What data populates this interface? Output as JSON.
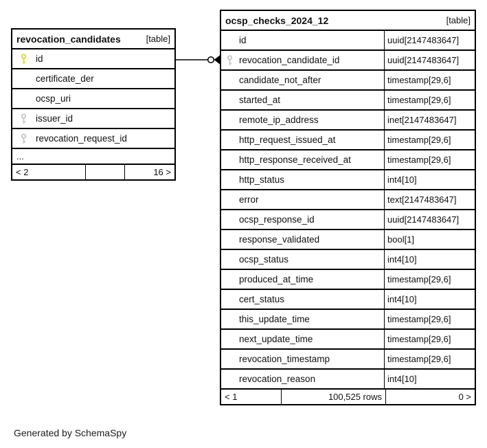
{
  "diagram": {
    "generated_by": "Generated by SchemaSpy",
    "colors": {
      "primary_key": "#dede21",
      "foreign_key": "#c9c9c9",
      "border": "#000000",
      "text": "#111111",
      "background": "#ffffff"
    },
    "relationship": {
      "from_table": "revocation_candidates",
      "from_column": "id",
      "to_table": "ocsp_checks_2024_12",
      "to_column": "revocation_candidate_id"
    },
    "tables": [
      {
        "title": "revocation_candidates",
        "badge": "[table]",
        "show_types": false,
        "ellipsis": "...",
        "columns": [
          {
            "name": "id",
            "key": "primary"
          },
          {
            "name": "certificate_der",
            "key": "none"
          },
          {
            "name": "ocsp_uri",
            "key": "none"
          },
          {
            "name": "issuer_id",
            "key": "foreign"
          },
          {
            "name": "revocation_request_id",
            "key": "foreign"
          }
        ],
        "footer": {
          "left": "< 2",
          "center": "",
          "right": "16 >"
        }
      },
      {
        "title": "ocsp_checks_2024_12",
        "badge": "[table]",
        "show_types": true,
        "ellipsis": "",
        "columns": [
          {
            "name": "id",
            "type": "uuid[2147483647]",
            "key": "none"
          },
          {
            "name": "revocation_candidate_id",
            "type": "uuid[2147483647]",
            "key": "foreign"
          },
          {
            "name": "candidate_not_after",
            "type": "timestamp[29,6]",
            "key": "none"
          },
          {
            "name": "started_at",
            "type": "timestamp[29,6]",
            "key": "none"
          },
          {
            "name": "remote_ip_address",
            "type": "inet[2147483647]",
            "key": "none"
          },
          {
            "name": "http_request_issued_at",
            "type": "timestamp[29,6]",
            "key": "none"
          },
          {
            "name": "http_response_received_at",
            "type": "timestamp[29,6]",
            "key": "none"
          },
          {
            "name": "http_status",
            "type": "int4[10]",
            "key": "none"
          },
          {
            "name": "error",
            "type": "text[2147483647]",
            "key": "none"
          },
          {
            "name": "ocsp_response_id",
            "type": "uuid[2147483647]",
            "key": "none"
          },
          {
            "name": "response_validated",
            "type": "bool[1]",
            "key": "none"
          },
          {
            "name": "ocsp_status",
            "type": "int4[10]",
            "key": "none"
          },
          {
            "name": "produced_at_time",
            "type": "timestamp[29,6]",
            "key": "none"
          },
          {
            "name": "cert_status",
            "type": "int4[10]",
            "key": "none"
          },
          {
            "name": "this_update_time",
            "type": "timestamp[29,6]",
            "key": "none"
          },
          {
            "name": "next_update_time",
            "type": "timestamp[29,6]",
            "key": "none"
          },
          {
            "name": "revocation_timestamp",
            "type": "timestamp[29,6]",
            "key": "none"
          },
          {
            "name": "revocation_reason",
            "type": "int4[10]",
            "key": "none"
          }
        ],
        "footer": {
          "left": "< 1",
          "center": "100,525 rows",
          "right": "0 >"
        }
      }
    ]
  }
}
